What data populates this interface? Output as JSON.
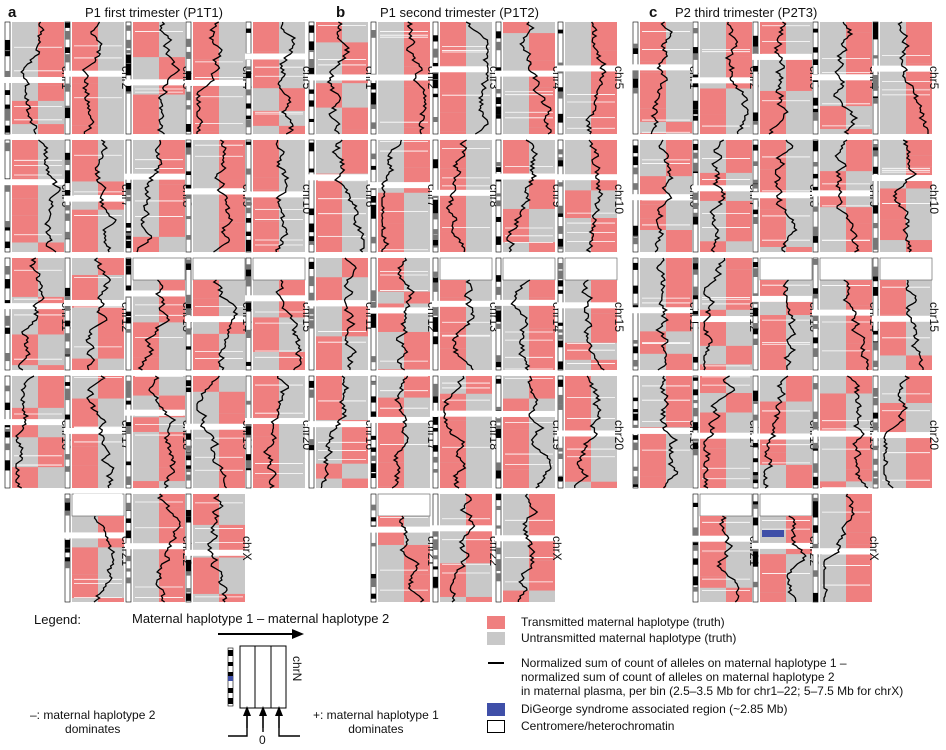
{
  "panels": [
    {
      "letter": "a",
      "title": "P1 first trimester (P1T1)"
    },
    {
      "letter": "b",
      "title": "P1 second trimester (P1T2)"
    },
    {
      "letter": "c",
      "title": "P2 third trimester (P2T3)"
    }
  ],
  "chromosomes": [
    "chr1",
    "chr2",
    "chr3",
    "chr4",
    "chr5",
    "chr6",
    "chr7",
    "chr8",
    "chr9",
    "chr10",
    "chr11",
    "chr12",
    "chr13",
    "chr14",
    "chr15",
    "chr16",
    "chr17",
    "chr18",
    "chr19",
    "chr20",
    "chr21",
    "chr22",
    "chrX"
  ],
  "colors": {
    "transmitted": "#ef7f7f",
    "untransmitted": "#c8c8c8",
    "trace": "#000000",
    "digeorge": "#3f4fa8",
    "centromere": "#ffffff"
  },
  "legend": {
    "label": "Legend:",
    "arrow_label": "Maternal haplotype 1 – maternal haplotype 2",
    "example_chr": "chrN",
    "minus_label": "–: maternal haplotype 2\ndominates",
    "plus_label": "+: maternal haplotype 1\ndominates",
    "zero_label": "0",
    "items": [
      {
        "swatch": "transmitted",
        "text": "Transmitted maternal haplotype (truth)"
      },
      {
        "swatch": "untransmitted",
        "text": "Untransmitted maternal haplotype (truth)"
      },
      {
        "swatch": "trace",
        "text": "Normalized sum of count of alleles on maternal haplotype 1 –\nnormalized sum of count of alleles on maternal haplotype 2\nin maternal plasma, per bin (2.5–3.5 Mb for chr1–22; 5–7.5 Mb for chrX)"
      },
      {
        "swatch": "digeorge",
        "text": "DiGeorge syndrome associated region (~2.85 Mb)"
      },
      {
        "swatch": "centromere",
        "text": "Centromere/heterochromatin"
      }
    ]
  }
}
